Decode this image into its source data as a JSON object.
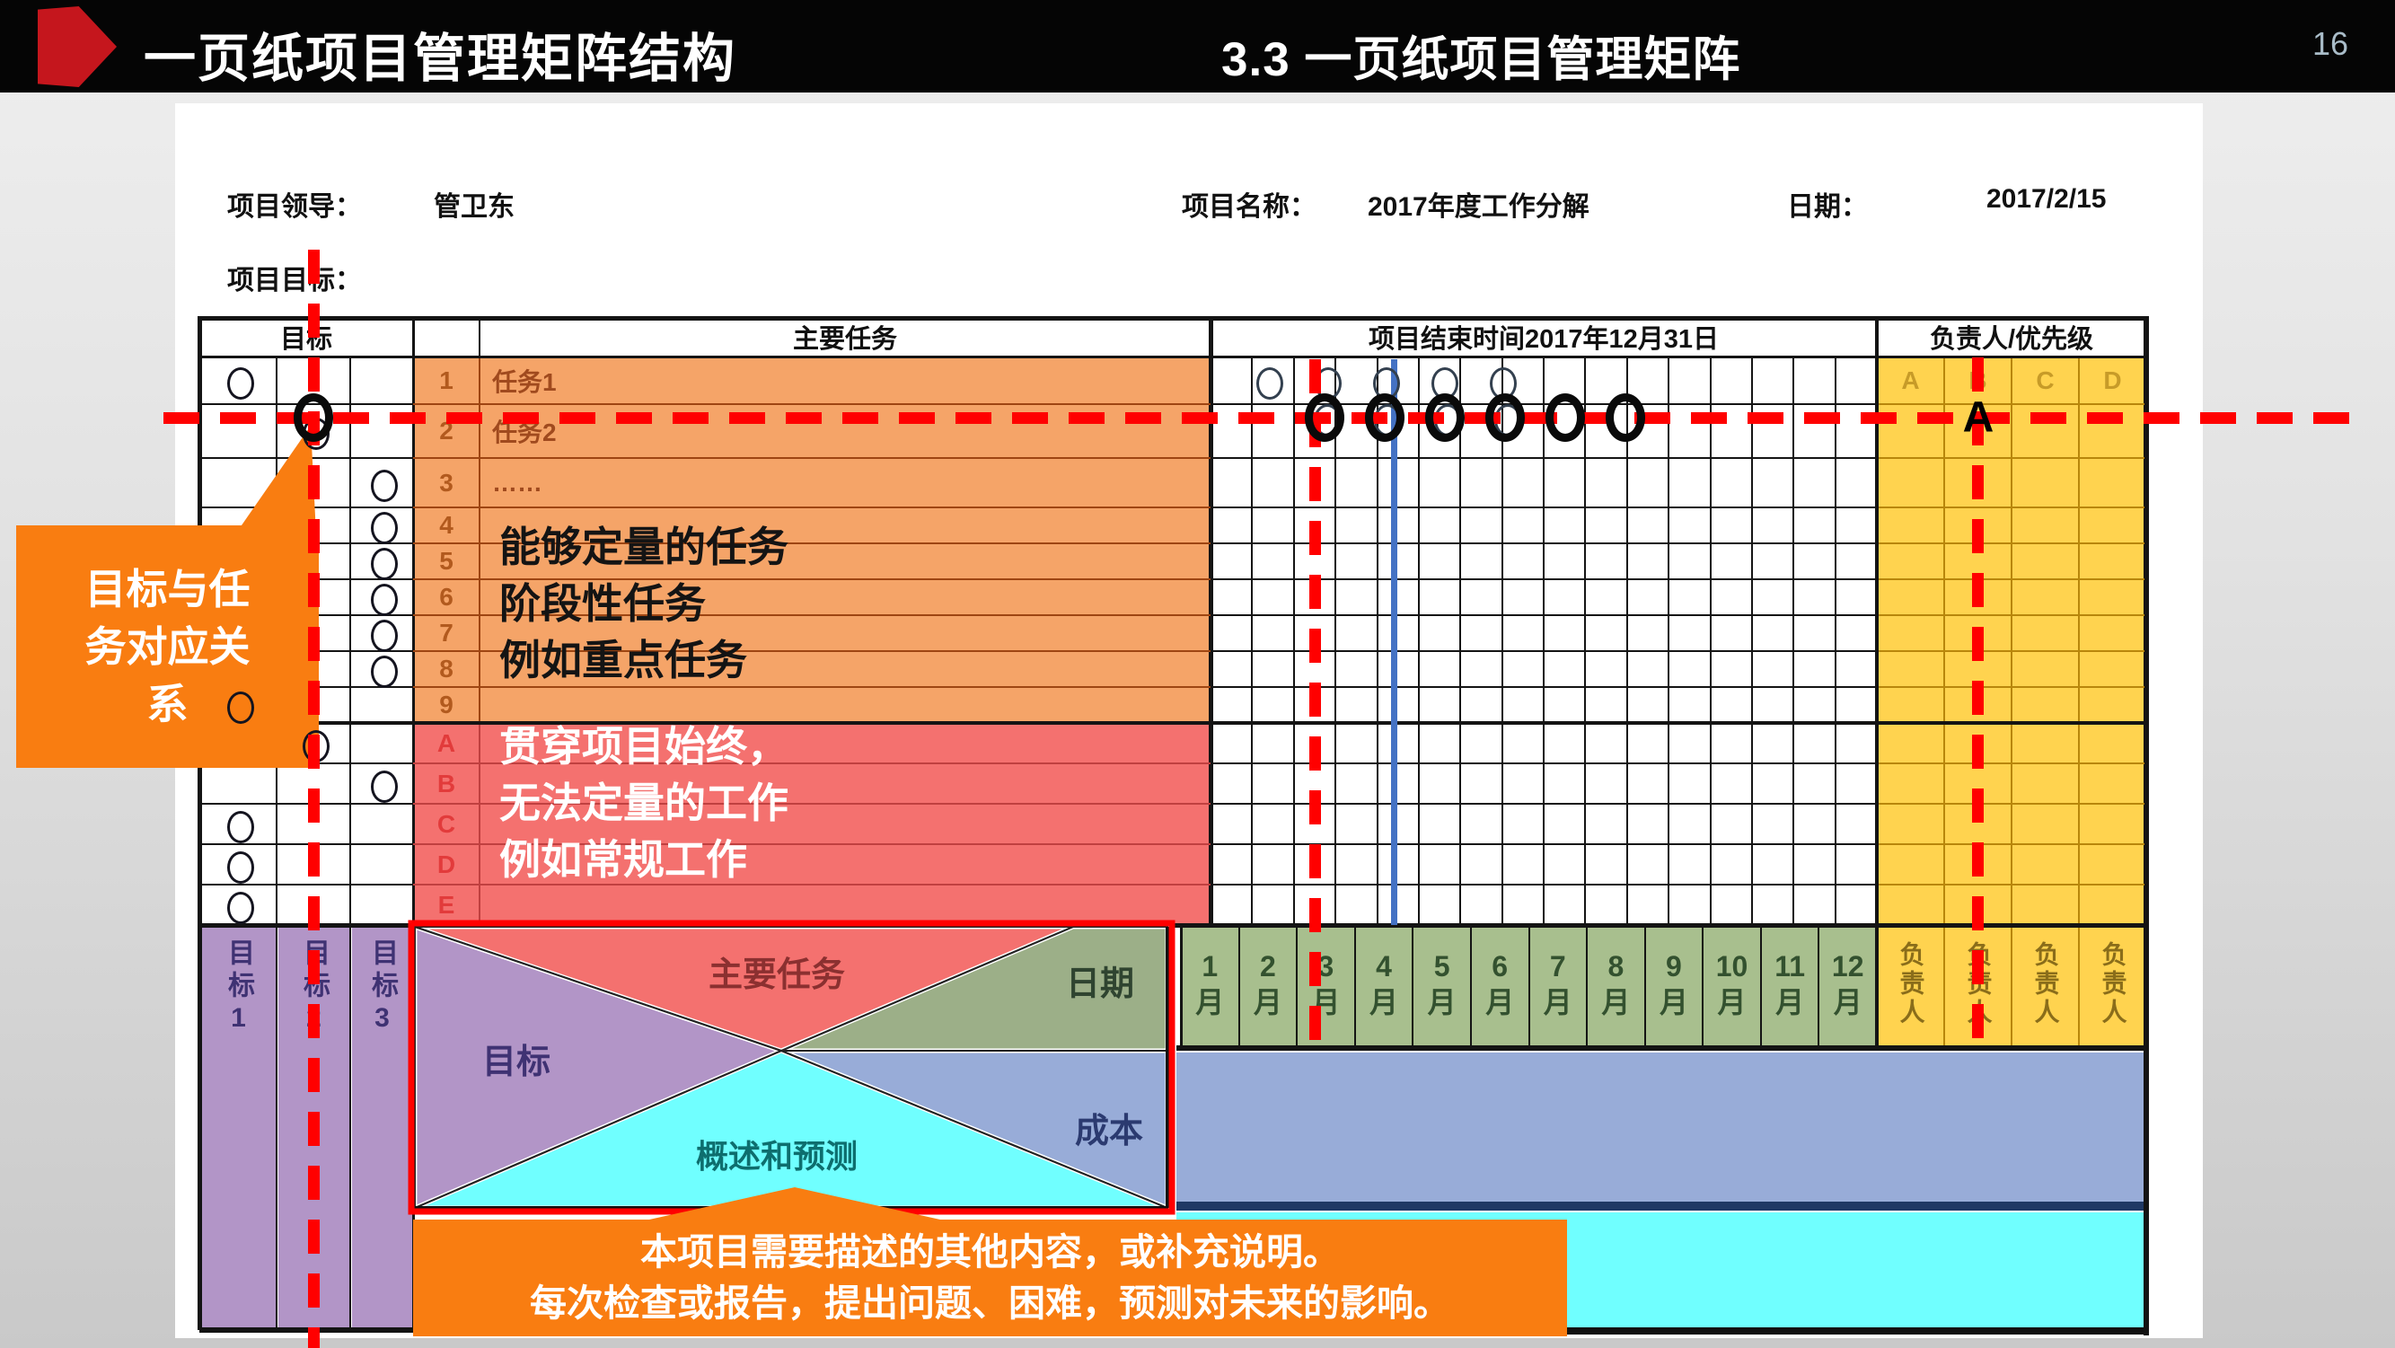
{
  "header": {
    "title": "一页纸项目管理矩阵结构",
    "section": "3.3 一页纸项目管理矩阵",
    "page": "16"
  },
  "info": {
    "leader_label": "项目领导：",
    "leader": "管卫东",
    "project_label": "项目名称：",
    "project": "2017年度工作分解",
    "date_label": "日期：",
    "date": "2017/2/15",
    "goal_label": "项目目标："
  },
  "table": {
    "col_headers": {
      "goal": "目标",
      "task": "主要任务",
      "timeline": "项目结束时间2017年12月31日",
      "owner": "负责人/优先级"
    },
    "priority_headers": [
      "A",
      "B",
      "C",
      "D"
    ],
    "task_rows": [
      {
        "num": "1",
        "text": "任务1"
      },
      {
        "num": "2",
        "text": "任务2"
      },
      {
        "num": "3",
        "text": "……"
      },
      {
        "num": "4",
        "text": ""
      },
      {
        "num": "5",
        "text": ""
      },
      {
        "num": "6",
        "text": ""
      },
      {
        "num": "7",
        "text": ""
      },
      {
        "num": "8",
        "text": ""
      },
      {
        "num": "9",
        "text": ""
      }
    ],
    "letter_rows": [
      "A",
      "B",
      "C",
      "D",
      "E"
    ],
    "goal_marks": [
      {
        "row": "1",
        "col": 1
      },
      {
        "row": "2",
        "col": 2
      },
      {
        "row": "3",
        "col": 3
      },
      {
        "row": "4",
        "col": 3
      },
      {
        "row": "5",
        "col": 3
      },
      {
        "row": "6",
        "col": 3
      },
      {
        "row": "7",
        "col": 3
      },
      {
        "row": "8",
        "col": 3
      },
      {
        "row": "9",
        "col": 1
      },
      {
        "row": "A",
        "col": 2
      },
      {
        "row": "B",
        "col": 3
      },
      {
        "row": "C",
        "col": 1
      },
      {
        "row": "D",
        "col": 1
      },
      {
        "row": "E",
        "col": 1
      }
    ],
    "task1_month_marks": [
      1,
      2,
      3,
      4,
      5
    ],
    "task2_month_marks": [
      3,
      4,
      5,
      6
    ],
    "emphasis_ring_count": 6,
    "months": [
      "1月",
      "2月",
      "3月",
      "4月",
      "5月",
      "6月",
      "7月",
      "8月",
      "9月",
      "10月",
      "11月",
      "12月"
    ],
    "owners": [
      "负责人",
      "负责人",
      "负责人",
      "负责人"
    ],
    "goal_columns": [
      "目标1",
      "目标2",
      "目标3"
    ]
  },
  "notes": {
    "quant": [
      "能够定量的任务",
      "阶段性任务",
      "例如重点任务"
    ],
    "routine": [
      "贯穿项目始终，",
      "无法定量的工作",
      "例如常规工作"
    ]
  },
  "diagram": {
    "goal": "目标",
    "main_task": "主要任务",
    "date": "日期",
    "overview": "概述和预测",
    "cost": "成本"
  },
  "callouts": {
    "left": [
      "目标与任",
      "务对应关",
      "系"
    ],
    "bottom": [
      "本项目需要描述的其他内容，或补充说明。",
      "每次检查或报告，提出问题、困难，预测对未来的影响。"
    ],
    "marker": "A"
  },
  "colors": {
    "accent_red": "#FF0000",
    "accent_dark_red": "#C5161D",
    "task_fill": "#F5A468",
    "routine_fill": "#F4716F",
    "priority_fill": "#FFD34F",
    "month_fill": "#A8BF8E",
    "olive_fill": "#9CAF88",
    "blue_fill": "#98ACD8",
    "cyan_fill": "#70FFFF",
    "purple_fill": "#B295C7",
    "callout_orange": "#F97D11",
    "line_blue": "#4472C4",
    "navy_border": "#1F3864"
  }
}
